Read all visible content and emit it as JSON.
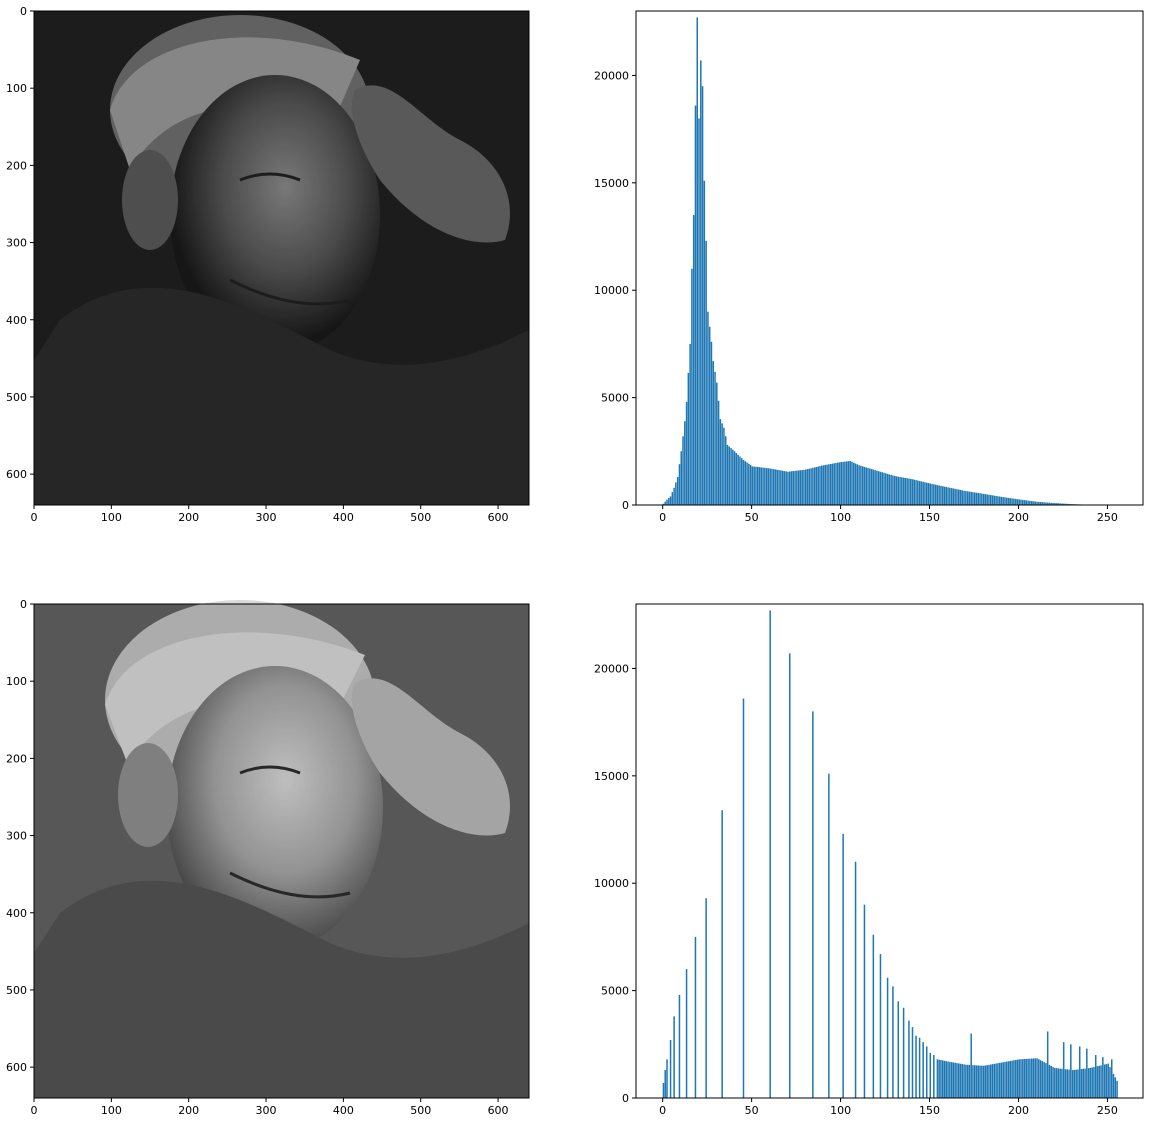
{
  "colors": {
    "bar": "#1f77b4",
    "axis": "#000000",
    "background": "#ffffff"
  },
  "chart_data": [
    {
      "panel": "original-image",
      "type": "image",
      "image": "grayscale portrait of an elderly man with eyes closed, hand on forehead, wearing a scarf (low contrast, dark)",
      "xlim": [
        0,
        640
      ],
      "ylim": [
        640,
        0
      ],
      "xticks": [
        0,
        100,
        200,
        300,
        400,
        500,
        600
      ],
      "yticks": [
        0,
        100,
        200,
        300,
        400,
        500,
        600
      ],
      "xtick_labels": [
        "0",
        "100",
        "200",
        "300",
        "400",
        "500",
        "600"
      ],
      "ytick_labels": [
        "0",
        "100",
        "200",
        "300",
        "400",
        "500",
        "600"
      ]
    },
    {
      "panel": "original-histogram",
      "type": "bar",
      "xlim": [
        -15,
        270
      ],
      "ylim": [
        0,
        23000
      ],
      "xticks": [
        0,
        50,
        100,
        150,
        200,
        250
      ],
      "yticks": [
        0,
        5000,
        10000,
        15000,
        20000
      ],
      "xtick_labels": [
        "0",
        "50",
        "100",
        "150",
        "200",
        "250"
      ],
      "ytick_labels": [
        "0",
        "5000",
        "10000",
        "15000",
        "20000"
      ],
      "peaks": [
        {
          "x": 0,
          "y": 60
        },
        {
          "x": 2,
          "y": 250
        },
        {
          "x": 4,
          "y": 400
        },
        {
          "x": 6,
          "y": 800
        },
        {
          "x": 8,
          "y": 1300
        },
        {
          "x": 10,
          "y": 2500
        },
        {
          "x": 12,
          "y": 3900
        },
        {
          "x": 13,
          "y": 4800
        },
        {
          "x": 15,
          "y": 7500
        },
        {
          "x": 16,
          "y": 11000
        },
        {
          "x": 17,
          "y": 13500
        },
        {
          "x": 18,
          "y": 18600
        },
        {
          "x": 19,
          "y": 22700
        },
        {
          "x": 20,
          "y": 18000
        },
        {
          "x": 21,
          "y": 20700
        },
        {
          "x": 22,
          "y": 19500
        },
        {
          "x": 23,
          "y": 15100
        },
        {
          "x": 24,
          "y": 12300
        },
        {
          "x": 25,
          "y": 9000
        },
        {
          "x": 27,
          "y": 7600
        },
        {
          "x": 28,
          "y": 6700
        },
        {
          "x": 30,
          "y": 5700
        },
        {
          "x": 32,
          "y": 4000
        },
        {
          "x": 34,
          "y": 3600
        },
        {
          "x": 36,
          "y": 2800
        },
        {
          "x": 40,
          "y": 2500
        },
        {
          "x": 45,
          "y": 2100
        },
        {
          "x": 50,
          "y": 1800
        },
        {
          "x": 60,
          "y": 1700
        },
        {
          "x": 70,
          "y": 1550
        },
        {
          "x": 80,
          "y": 1650
        },
        {
          "x": 90,
          "y": 1850
        },
        {
          "x": 100,
          "y": 2000
        },
        {
          "x": 105,
          "y": 2050
        },
        {
          "x": 110,
          "y": 1850
        },
        {
          "x": 120,
          "y": 1600
        },
        {
          "x": 130,
          "y": 1350
        },
        {
          "x": 140,
          "y": 1200
        },
        {
          "x": 150,
          "y": 1000
        },
        {
          "x": 160,
          "y": 820
        },
        {
          "x": 170,
          "y": 650
        },
        {
          "x": 180,
          "y": 520
        },
        {
          "x": 190,
          "y": 380
        },
        {
          "x": 200,
          "y": 260
        },
        {
          "x": 210,
          "y": 150
        },
        {
          "x": 220,
          "y": 90
        },
        {
          "x": 230,
          "y": 40
        },
        {
          "x": 240,
          "y": 10
        },
        {
          "x": 250,
          "y": 0
        },
        {
          "x": 255,
          "y": 0
        }
      ]
    },
    {
      "panel": "equalized-image",
      "type": "image",
      "image": "same portrait after histogram equalization (high contrast, bright, detailed texture)",
      "xlim": [
        0,
        640
      ],
      "ylim": [
        640,
        0
      ],
      "xticks": [
        0,
        100,
        200,
        300,
        400,
        500,
        600
      ],
      "yticks": [
        0,
        100,
        200,
        300,
        400,
        500,
        600
      ],
      "xtick_labels": [
        "0",
        "100",
        "200",
        "300",
        "400",
        "500",
        "600"
      ],
      "ytick_labels": [
        "0",
        "100",
        "200",
        "300",
        "400",
        "500",
        "600"
      ]
    },
    {
      "panel": "equalized-histogram",
      "type": "bar",
      "xlim": [
        -15,
        270
      ],
      "ylim": [
        0,
        23000
      ],
      "xticks": [
        0,
        50,
        100,
        150,
        200,
        250
      ],
      "yticks": [
        0,
        5000,
        10000,
        15000,
        20000
      ],
      "xtick_labels": [
        "0",
        "50",
        "100",
        "150",
        "200",
        "250"
      ],
      "ytick_labels": [
        "0",
        "5000",
        "10000",
        "15000",
        "20000"
      ],
      "spikes": [
        {
          "x": 0,
          "y": 700
        },
        {
          "x": 1,
          "y": 1300
        },
        {
          "x": 2,
          "y": 1800
        },
        {
          "x": 4,
          "y": 2700
        },
        {
          "x": 6,
          "y": 3800
        },
        {
          "x": 9,
          "y": 4800
        },
        {
          "x": 13,
          "y": 6000
        },
        {
          "x": 18,
          "y": 7500
        },
        {
          "x": 24,
          "y": 9300
        },
        {
          "x": 33,
          "y": 13400
        },
        {
          "x": 45,
          "y": 18600
        },
        {
          "x": 60,
          "y": 22700
        },
        {
          "x": 71,
          "y": 20700
        },
        {
          "x": 84,
          "y": 18000
        },
        {
          "x": 93,
          "y": 15100
        },
        {
          "x": 101,
          "y": 12300
        },
        {
          "x": 108,
          "y": 11000
        },
        {
          "x": 113,
          "y": 9000
        },
        {
          "x": 118,
          "y": 7600
        },
        {
          "x": 122,
          "y": 6700
        },
        {
          "x": 126,
          "y": 5600
        },
        {
          "x": 129,
          "y": 5200
        },
        {
          "x": 132,
          "y": 4500
        },
        {
          "x": 135,
          "y": 4200
        },
        {
          "x": 138,
          "y": 3600
        },
        {
          "x": 140,
          "y": 3300
        },
        {
          "x": 142,
          "y": 2900
        },
        {
          "x": 144,
          "y": 2800
        },
        {
          "x": 146,
          "y": 2600
        },
        {
          "x": 148,
          "y": 2400
        },
        {
          "x": 150,
          "y": 2100
        },
        {
          "x": 152,
          "y": 2000
        },
        {
          "x": 173,
          "y": 3000
        },
        {
          "x": 216,
          "y": 3100
        },
        {
          "x": 225,
          "y": 2600
        },
        {
          "x": 229,
          "y": 2500
        },
        {
          "x": 234,
          "y": 2400
        },
        {
          "x": 238,
          "y": 2300
        },
        {
          "x": 243,
          "y": 2000
        },
        {
          "x": 247,
          "y": 1900
        },
        {
          "x": 252,
          "y": 1800
        },
        {
          "x": 255,
          "y": 800
        }
      ],
      "background_levels": [
        {
          "x": 154,
          "y": 1800
        },
        {
          "x": 160,
          "y": 1700
        },
        {
          "x": 170,
          "y": 1550
        },
        {
          "x": 180,
          "y": 1500
        },
        {
          "x": 190,
          "y": 1650
        },
        {
          "x": 200,
          "y": 1800
        },
        {
          "x": 210,
          "y": 1850
        },
        {
          "x": 220,
          "y": 1400
        },
        {
          "x": 230,
          "y": 1300
        },
        {
          "x": 240,
          "y": 1400
        },
        {
          "x": 250,
          "y": 1600
        },
        {
          "x": 255,
          "y": 800
        }
      ]
    }
  ]
}
